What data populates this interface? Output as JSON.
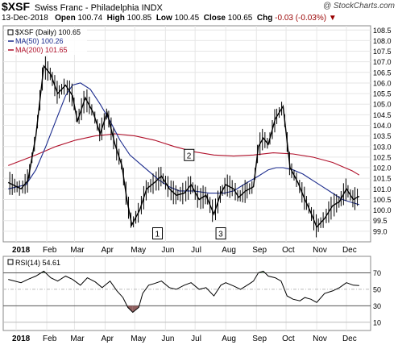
{
  "header": {
    "symbol": "$XSF",
    "description": "Swiss Franc - Philadelphia INDX",
    "date": "13-Dec-2018",
    "open_label": "Open",
    "open": "100.74",
    "high_label": "High",
    "high": "100.85",
    "low_label": "Low",
    "low": "100.45",
    "close_label": "Close",
    "close": "100.65",
    "chg_label": "Chg",
    "chg": "-0.03 (-0.03%)",
    "credit": "@ StockCharts.com"
  },
  "legend": {
    "price": "$XSF (Daily) 100.65",
    "ma50": "MA(50) 100.26",
    "ma200": "MA(200) 101.65",
    "rsi": "RSI(14) 54.61"
  },
  "annotations": [
    {
      "label": "1",
      "month": "May",
      "day": 143,
      "value": 98.9
    },
    {
      "label": "2",
      "month": "Jun",
      "day": 175,
      "value": 102.6
    },
    {
      "label": "3",
      "month": "Jul",
      "day": 207,
      "value": 98.9
    }
  ],
  "colors": {
    "price": "#000000",
    "ma50": "#1a2a8c",
    "ma200": "#b0102a",
    "rsi_ob": "#80a080",
    "rsi_os": "#906060"
  },
  "chart_data": [
    {
      "type": "line",
      "title": "$XSF Swiss Franc - Philadelphia INDX",
      "x_unit": "2018 calendar day",
      "ylim": [
        98.5,
        108.7
      ],
      "y_ticks": [
        99.0,
        99.5,
        100.0,
        100.5,
        101.0,
        101.5,
        102.0,
        102.5,
        103.0,
        103.5,
        104.0,
        104.5,
        105.0,
        105.5,
        106.0,
        106.5,
        107.0,
        107.5,
        108.0,
        108.5
      ],
      "x_ticks": [
        {
          "label": "2018",
          "day": 0
        },
        {
          "label": "Feb",
          "day": 31
        },
        {
          "label": "Mar",
          "day": 59
        },
        {
          "label": "Apr",
          "day": 90
        },
        {
          "label": "May",
          "day": 120
        },
        {
          "label": "Jun",
          "day": 151
        },
        {
          "label": "Jul",
          "day": 181
        },
        {
          "label": "Aug",
          "day": 212
        },
        {
          "label": "Sep",
          "day": 243
        },
        {
          "label": "Oct",
          "day": 273
        },
        {
          "label": "Nov",
          "day": 304
        },
        {
          "label": "Dec",
          "day": 334
        }
      ],
      "series": [
        {
          "name": "$XSF (Daily)",
          "x": [
            -8,
            5,
            12,
            20,
            28,
            35,
            42,
            50,
            57,
            62,
            70,
            78,
            85,
            92,
            100,
            107,
            112,
            117,
            125,
            132,
            140,
            147,
            155,
            162,
            170,
            177,
            185,
            192,
            200,
            207,
            212,
            220,
            225,
            232,
            240,
            245,
            250,
            255,
            262,
            270,
            277,
            285,
            292,
            297,
            304,
            312,
            320,
            327,
            334,
            341,
            347
          ],
          "y": [
            101.3,
            101.0,
            101.4,
            103.5,
            106.8,
            106.4,
            105.5,
            105.9,
            105.4,
            104.2,
            105.3,
            104.6,
            103.6,
            104.6,
            103.1,
            102.1,
            100.5,
            99.3,
            100.0,
            101.0,
            101.3,
            101.6,
            101.0,
            100.7,
            100.8,
            101.2,
            100.5,
            100.7,
            99.8,
            100.8,
            101.2,
            101.0,
            100.6,
            100.9,
            101.1,
            103.0,
            103.4,
            103.1,
            104.3,
            104.9,
            102.0,
            101.3,
            100.5,
            100.0,
            99.2,
            99.6,
            100.2,
            100.4,
            101.0,
            100.5,
            100.65
          ]
        },
        {
          "name": "MA(50)",
          "x": [
            -8,
            10,
            20,
            30,
            40,
            50,
            57,
            65,
            75,
            85,
            95,
            105,
            115,
            125,
            135,
            145,
            155,
            165,
            180,
            195,
            210,
            220,
            230,
            245,
            255,
            263,
            270,
            280,
            290,
            300,
            310,
            320,
            330,
            340,
            347
          ],
          "y": [
            101.0,
            101.2,
            101.9,
            103.0,
            104.2,
            105.4,
            105.9,
            106.0,
            105.7,
            105.0,
            104.2,
            103.3,
            102.6,
            102.2,
            101.8,
            101.4,
            101.1,
            100.9,
            100.9,
            100.8,
            100.8,
            100.9,
            101.2,
            101.6,
            101.9,
            102.0,
            102.0,
            101.9,
            101.7,
            101.4,
            101.1,
            100.8,
            100.5,
            100.35,
            100.26
          ]
        },
        {
          "name": "MA(200)",
          "x": [
            -8,
            20,
            40,
            60,
            80,
            100,
            120,
            140,
            160,
            180,
            200,
            220,
            240,
            260,
            280,
            300,
            320,
            340,
            347
          ],
          "y": [
            102.1,
            102.6,
            103.0,
            103.3,
            103.5,
            103.6,
            103.5,
            103.3,
            103.0,
            102.75,
            102.6,
            102.55,
            102.6,
            102.7,
            102.65,
            102.5,
            102.25,
            101.85,
            101.65
          ]
        }
      ]
    },
    {
      "type": "line",
      "title": "RSI(14)",
      "ylim": [
        0,
        90
      ],
      "y_ticks": [
        10,
        30,
        50,
        70
      ],
      "overbought": 70,
      "oversold": 30,
      "x_ticks": [
        "2018",
        "Feb",
        "Mar",
        "Apr",
        "May",
        "Jun",
        "Jul",
        "Aug",
        "Sep",
        "Oct",
        "Nov",
        "Dec"
      ],
      "series": [
        {
          "name": "RSI(14)",
          "x": [
            -8,
            5,
            12,
            20,
            28,
            35,
            42,
            50,
            57,
            65,
            72,
            80,
            87,
            95,
            102,
            108,
            113,
            118,
            124,
            128,
            134,
            140,
            147,
            155,
            162,
            170,
            177,
            185,
            192,
            200,
            207,
            212,
            220,
            227,
            235,
            240,
            245,
            250,
            255,
            262,
            268,
            274,
            280,
            287,
            292,
            298,
            304,
            312,
            320,
            327,
            334,
            341,
            347
          ],
          "y": [
            62,
            58,
            62,
            66,
            72,
            64,
            60,
            66,
            62,
            55,
            64,
            59,
            52,
            60,
            48,
            40,
            28,
            22,
            28,
            45,
            55,
            57,
            60,
            52,
            50,
            55,
            58,
            50,
            52,
            42,
            55,
            58,
            54,
            50,
            56,
            60,
            70,
            72,
            66,
            64,
            60,
            42,
            38,
            36,
            40,
            38,
            34,
            45,
            48,
            52,
            58,
            55,
            54.61
          ]
        }
      ]
    }
  ]
}
